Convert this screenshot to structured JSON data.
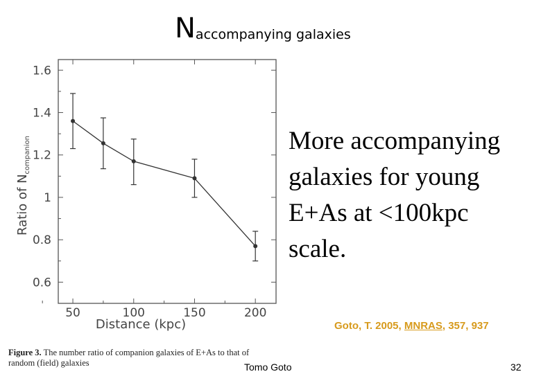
{
  "slide": {
    "title_big": "N",
    "title_sub": "accompanying galaxies",
    "bullet": "More accompanying galaxies for young E+As at <100kpc scale.",
    "citation_prefix": "Goto, T. 2005, ",
    "citation_journal": "MNRAS",
    "citation_suffix": ", 357, 937",
    "caption_fig": "Figure 3.",
    "caption_text": " The number ratio of companion galaxies of E+As to that of random (field) galaxies",
    "footer_author": "Tomo Goto",
    "footer_page": "32"
  },
  "chart_data": {
    "type": "line",
    "xlabel": "Distance (kpc)",
    "ylabel_main": "Ratio of N",
    "ylabel_sub": "companion",
    "xlim": [
      38,
      217
    ],
    "ylim": [
      0.5,
      1.65
    ],
    "xticks": [
      50,
      100,
      150,
      200
    ],
    "xtick_labels": [
      "50",
      "100",
      "150",
      "200"
    ],
    "yticks": [
      0.6,
      0.8,
      1.0,
      1.2,
      1.4,
      1.6
    ],
    "ytick_labels": [
      "0.6",
      "0.8",
      "1",
      "1.2",
      "1.4",
      "1.6"
    ],
    "series": [
      {
        "x": [
          50,
          75,
          100,
          150,
          200
        ],
        "y": [
          1.36,
          1.255,
          1.17,
          1.09,
          0.77
        ],
        "err_low": [
          1.23,
          1.135,
          1.06,
          1.0,
          0.7
        ],
        "err_high": [
          1.49,
          1.375,
          1.275,
          1.18,
          0.84
        ]
      }
    ],
    "grid": false,
    "colors": {
      "line": "#333333",
      "axis": "#555555"
    }
  }
}
